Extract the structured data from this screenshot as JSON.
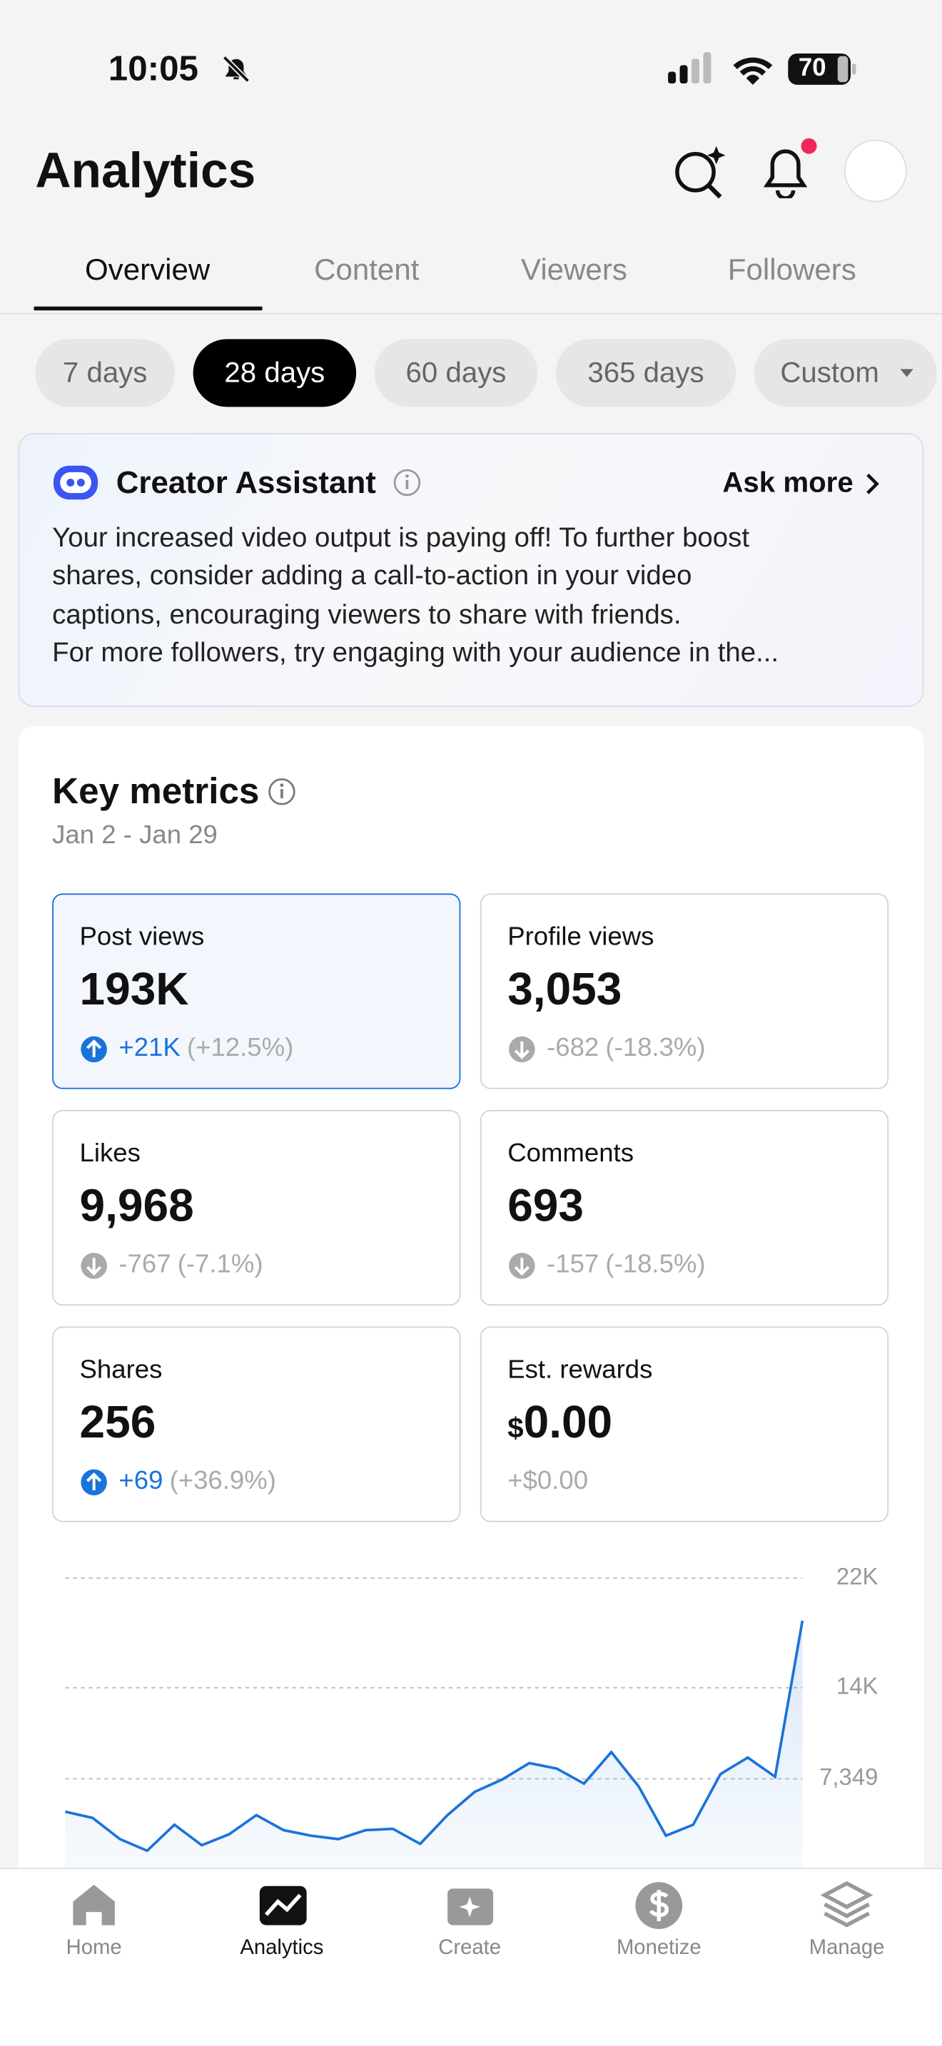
{
  "status_bar": {
    "time": "10:05",
    "battery": "70"
  },
  "header": {
    "title": "Analytics"
  },
  "tabs": [
    "Overview",
    "Content",
    "Viewers",
    "Followers"
  ],
  "date_ranges": [
    "7 days",
    "28 days",
    "60 days",
    "365 days",
    "Custom"
  ],
  "assistant": {
    "title": "Creator Assistant",
    "action": "Ask more",
    "lines": [
      "Your increased video output is paying off! To further boost",
      "shares, consider adding a call-to-action in your video",
      "captions, encouraging viewers to share with friends.",
      "For more followers, try engaging with your audience in the..."
    ]
  },
  "key_metrics": {
    "title": "Key metrics",
    "date_range": "Jan 2 - Jan 29",
    "cards": [
      {
        "label": "Post views",
        "value": "193K",
        "change": "+21K",
        "percent": "(+12.5%)",
        "trend": "up",
        "selected": true
      },
      {
        "label": "Profile views",
        "value": "3,053",
        "change": "-682",
        "percent": "(-18.3%)",
        "trend": "down"
      },
      {
        "label": "Likes",
        "value": "9,968",
        "change": "-767",
        "percent": "(-7.1%)",
        "trend": "down"
      },
      {
        "label": "Comments",
        "value": "693",
        "change": "-157",
        "percent": "(-18.5%)",
        "trend": "down"
      },
      {
        "label": "Shares",
        "value": "256",
        "change": "+69",
        "percent": "(+36.9%)",
        "trend": "up"
      },
      {
        "label": "Est. rewards",
        "currency": "$",
        "value": "0.00",
        "change": "+$0.00"
      }
    ]
  },
  "chart_data": {
    "type": "area",
    "values": [
      4950,
      4500,
      2950,
      2100,
      4000,
      2500,
      3300,
      4700,
      3600,
      3200,
      2950,
      3600,
      3700,
      2600,
      4700,
      6400,
      7300,
      8500,
      8100,
      7000,
      9300,
      6800,
      3200,
      4000,
      7700,
      8900,
      7500,
      18900
    ],
    "ylim": [
      0,
      22000
    ],
    "yticks": [
      {
        "value": 22000,
        "label": "22K"
      },
      {
        "value": 14000,
        "label": "14K"
      },
      {
        "value": 7349,
        "label": "7,349"
      }
    ],
    "color": "#1a73d9",
    "grid": true
  },
  "nav": [
    "Home",
    "Analytics",
    "Create",
    "Monetize",
    "Manage"
  ]
}
